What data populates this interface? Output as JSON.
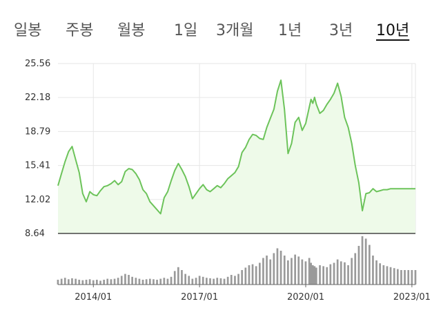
{
  "tabs": [
    {
      "label": "일봉",
      "active": false
    },
    {
      "label": "주봉",
      "active": false
    },
    {
      "label": "월봉",
      "active": false
    },
    {
      "label": "1일",
      "active": false
    },
    {
      "label": "3개월",
      "active": false
    },
    {
      "label": "1년",
      "active": false
    },
    {
      "label": "3년",
      "active": false
    },
    {
      "label": "10년",
      "active": true
    }
  ],
  "colors": {
    "line": "#6cc35a",
    "area": "#eefae9",
    "grid": "#e6e6e6",
    "volume": "#9a9a9a",
    "axis": "#333333"
  },
  "chart_data": {
    "type": "line",
    "title": "",
    "xlabel": "",
    "ylabel": "",
    "y_ticks": [
      "25.56",
      "22.18",
      "18.79",
      "15.41",
      "12.02",
      "8.64"
    ],
    "ylim": [
      8.64,
      25.56
    ],
    "x_ticks": [
      "2014/01",
      "2017/01",
      "2020/01",
      "2023/01"
    ],
    "xlim": [
      2013.0,
      2023.1
    ],
    "grid": true,
    "series": [
      {
        "x": [
          2013.0,
          2013.1,
          2013.2,
          2013.3,
          2013.4,
          2013.5,
          2013.6,
          2013.7,
          2013.8,
          2013.9,
          2014.0,
          2014.1,
          2014.2,
          2014.3,
          2014.4,
          2014.5,
          2014.6,
          2014.7,
          2014.8,
          2014.9,
          2015.0,
          2015.1,
          2015.2,
          2015.3,
          2015.4,
          2015.5,
          2015.6,
          2015.7,
          2015.8,
          2015.9,
          2016.0,
          2016.1,
          2016.2,
          2016.3,
          2016.4,
          2016.5,
          2016.6,
          2016.7,
          2016.8,
          2016.9,
          2017.0,
          2017.1,
          2017.2,
          2017.3,
          2017.4,
          2017.5,
          2017.6,
          2017.7,
          2017.8,
          2017.9,
          2018.0,
          2018.1,
          2018.2,
          2018.3,
          2018.4,
          2018.5,
          2018.6,
          2018.7,
          2018.8,
          2018.9,
          2019.0,
          2019.1,
          2019.2,
          2019.3,
          2019.4,
          2019.5,
          2019.6,
          2019.7,
          2019.8,
          2019.9,
          2020.0,
          2020.1,
          2020.15,
          2020.2,
          2020.25,
          2020.3,
          2020.4,
          2020.5,
          2020.6,
          2020.7,
          2020.8,
          2020.9,
          2021.0,
          2021.1,
          2021.2,
          2021.3,
          2021.4,
          2021.5,
          2021.6,
          2021.7,
          2021.8,
          2021.9,
          2022.0,
          2022.1,
          2022.2,
          2022.3,
          2022.4,
          2022.5,
          2022.6,
          2022.7,
          2022.8,
          2022.9,
          2023.0,
          2023.1
        ],
        "y": [
          13.4,
          14.6,
          15.8,
          16.8,
          17.3,
          16.0,
          14.7,
          12.6,
          11.8,
          12.8,
          12.5,
          12.4,
          12.9,
          13.3,
          13.4,
          13.6,
          13.9,
          13.5,
          13.8,
          14.8,
          15.1,
          15.0,
          14.6,
          14.0,
          13.0,
          12.6,
          11.8,
          11.4,
          11.0,
          10.6,
          12.2,
          12.8,
          13.9,
          14.9,
          15.6,
          15.0,
          14.3,
          13.3,
          12.1,
          12.6,
          13.1,
          13.5,
          13.0,
          12.8,
          13.1,
          13.4,
          13.2,
          13.6,
          14.1,
          14.4,
          14.7,
          15.3,
          16.7,
          17.2,
          18.0,
          18.5,
          18.4,
          18.1,
          18.0,
          19.2,
          20.1,
          21.0,
          22.8,
          23.9,
          21.0,
          16.6,
          17.6,
          19.7,
          20.2,
          18.9,
          19.6,
          21.2,
          22.0,
          21.6,
          22.2,
          21.5,
          20.6,
          20.9,
          21.5,
          22.0,
          22.6,
          23.6,
          22.3,
          20.2,
          19.2,
          17.6,
          15.4,
          13.7,
          10.9,
          12.6,
          12.7,
          13.1,
          12.8,
          12.9,
          13.0,
          13.0,
          13.1,
          13.1,
          13.1,
          13.1,
          13.1,
          13.1,
          13.1,
          13.1
        ],
        "volume": [
          0.1,
          0.12,
          0.14,
          0.11,
          0.13,
          0.12,
          0.1,
          0.09,
          0.1,
          0.11,
          0.09,
          0.1,
          0.08,
          0.1,
          0.12,
          0.11,
          0.12,
          0.14,
          0.18,
          0.22,
          0.2,
          0.16,
          0.14,
          0.12,
          0.1,
          0.11,
          0.12,
          0.11,
          0.1,
          0.12,
          0.14,
          0.12,
          0.16,
          0.28,
          0.36,
          0.3,
          0.22,
          0.18,
          0.12,
          0.14,
          0.18,
          0.16,
          0.14,
          0.13,
          0.12,
          0.14,
          0.13,
          0.12,
          0.16,
          0.2,
          0.18,
          0.22,
          0.3,
          0.35,
          0.4,
          0.42,
          0.38,
          0.45,
          0.55,
          0.6,
          0.52,
          0.65,
          0.75,
          0.7,
          0.6,
          0.5,
          0.55,
          0.62,
          0.58,
          0.52,
          0.48,
          0.55,
          0.45,
          0.4,
          0.38,
          0.35,
          0.4,
          0.38,
          0.36,
          0.42,
          0.45,
          0.52,
          0.48,
          0.46,
          0.4,
          0.55,
          0.65,
          0.8,
          1.0,
          0.95,
          0.82,
          0.6,
          0.5,
          0.44,
          0.4,
          0.38,
          0.36,
          0.34,
          0.32,
          0.3,
          0.3,
          0.3,
          0.3,
          0.3
        ]
      }
    ]
  }
}
